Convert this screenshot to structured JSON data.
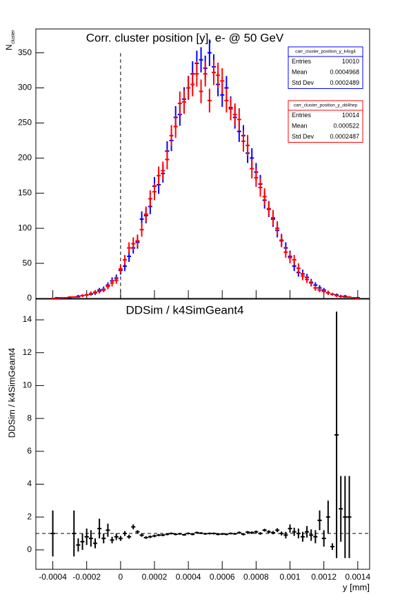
{
  "chart_data": [
    {
      "type": "hist_errorbar",
      "title": "Corr. cluster position [y],  e- @ 50 GeV",
      "ylabel": "N",
      "ylabel_sub": "cluster",
      "xlim": [
        -0.0005,
        0.00147
      ],
      "ylim": [
        0,
        384
      ],
      "xticks": [
        -0.0004,
        -0.0002,
        0,
        0.0002,
        0.0004,
        0.0006,
        0.0008,
        0.001,
        0.0012,
        0.0014
      ],
      "yticks": [
        0,
        50,
        100,
        150,
        200,
        250,
        300,
        350
      ],
      "vline": {
        "x": 0,
        "y_to": 350
      },
      "x": [
        -0.0004,
        -0.000375,
        -0.00035,
        -0.000325,
        -0.0003,
        -0.000275,
        -0.00025,
        -0.000225,
        -0.0002,
        -0.000175,
        -0.00015,
        -0.000125,
        -0.0001,
        -7.5e-05,
        -5e-05,
        -2.5e-05,
        0,
        2.5e-05,
        5e-05,
        7.5e-05,
        0.0001,
        0.000125,
        0.00015,
        0.000175,
        0.0002,
        0.000225,
        0.00025,
        0.000275,
        0.0003,
        0.000325,
        0.00035,
        0.000375,
        0.0004,
        0.000425,
        0.00045,
        0.000475,
        0.0005,
        0.000525,
        0.00055,
        0.000575,
        0.0006,
        0.000625,
        0.00065,
        0.000675,
        0.0007,
        0.000725,
        0.00075,
        0.000775,
        0.0008,
        0.000825,
        0.00085,
        0.000875,
        0.0009,
        0.000925,
        0.00095,
        0.000975,
        0.001,
        0.001025,
        0.00105,
        0.001075,
        0.0011,
        0.001125,
        0.00115,
        0.001175,
        0.0012,
        0.001225,
        0.00125,
        0.001275,
        0.0013,
        0.001325,
        0.00135,
        0.001375,
        0.0014
      ],
      "series": [
        {
          "name": "carr_cluster_position_y_k4sg4",
          "color": "#0000ff",
          "values": [
            0,
            1,
            0,
            1,
            1,
            2,
            3,
            4,
            5,
            6,
            8,
            12,
            13,
            19,
            25,
            29,
            40,
            46,
            60,
            72,
            80,
            113,
            118,
            131,
            160,
            162,
            178,
            210,
            225,
            258,
            262,
            284,
            300,
            320,
            335,
            340,
            328,
            350,
            330,
            305,
            290,
            300,
            272,
            258,
            238,
            232,
            207,
            200,
            180,
            163,
            140,
            127,
            113,
            97,
            83,
            72,
            60,
            46,
            37,
            35,
            30,
            23,
            19,
            15,
            12,
            8,
            6,
            5,
            3,
            3,
            2,
            1,
            1
          ],
          "errors": [
            0,
            1,
            0,
            1,
            1,
            1,
            2,
            2,
            2,
            2,
            3,
            3,
            4,
            4,
            5,
            5,
            6,
            7,
            8,
            8,
            9,
            11,
            11,
            11,
            13,
            13,
            13,
            14,
            15,
            16,
            16,
            17,
            17,
            18,
            18,
            18,
            18,
            19,
            18,
            17,
            17,
            17,
            16,
            16,
            15,
            15,
            14,
            14,
            13,
            13,
            12,
            11,
            11,
            10,
            9,
            8,
            8,
            7,
            6,
            6,
            5,
            5,
            4,
            4,
            3,
            3,
            2,
            2,
            2,
            2,
            1,
            1,
            1
          ]
        },
        {
          "name": "carr_cluster_position_y_dd4hep",
          "color": "#ff0000",
          "values": [
            0,
            0,
            1,
            1,
            2,
            2,
            2,
            4,
            5,
            7,
            9,
            10,
            12,
            17,
            22,
            26,
            42,
            55,
            72,
            78,
            82,
            98,
            120,
            142,
            152,
            175,
            182,
            198,
            232,
            245,
            278,
            280,
            300,
            305,
            320,
            295,
            320,
            282,
            322,
            318,
            310,
            282,
            270,
            262,
            255,
            224,
            218,
            185,
            172,
            158,
            145,
            128,
            115,
            100,
            82,
            66,
            58,
            55,
            43,
            32,
            27,
            22,
            15,
            12,
            10,
            8,
            6,
            4,
            3,
            2,
            2,
            1,
            0
          ],
          "errors": [
            0,
            0,
            1,
            1,
            1,
            1,
            1,
            2,
            2,
            3,
            3,
            3,
            3,
            4,
            5,
            5,
            6,
            7,
            8,
            9,
            9,
            10,
            11,
            12,
            12,
            13,
            13,
            14,
            15,
            16,
            17,
            17,
            17,
            17,
            18,
            17,
            18,
            17,
            18,
            18,
            18,
            17,
            16,
            16,
            16,
            15,
            15,
            14,
            13,
            13,
            12,
            11,
            11,
            10,
            9,
            8,
            8,
            7,
            7,
            6,
            5,
            5,
            4,
            3,
            3,
            3,
            2,
            2,
            2,
            1,
            1,
            1,
            0
          ]
        }
      ],
      "stats": [
        {
          "title": "carr_cluster_position_y_k4sg4",
          "color": "#0000ff",
          "rows": [
            [
              "Entries",
              10010
            ],
            [
              "Mean",
              0.0004968
            ],
            [
              "Std Dev",
              0.0002489
            ]
          ]
        },
        {
          "title": "carr_cluster_position_y_dd4hep",
          "color": "#ff0000",
          "rows": [
            [
              "Entries",
              10014
            ],
            [
              "Mean",
              0.000522
            ],
            [
              "Std Dev",
              0.0002487
            ]
          ]
        }
      ]
    },
    {
      "type": "errorbar",
      "title": "DDSim / k4SimGeant4",
      "ylabel": "DDSim / k4SimGeant4",
      "xlabel": "y [mm]",
      "xlim": [
        -0.0005,
        0.00147
      ],
      "ylim": [
        -1.18,
        15.26
      ],
      "xticks": [
        -0.0004,
        -0.0002,
        0,
        0.0002,
        0.0004,
        0.0006,
        0.0008,
        0.001,
        0.0012,
        0.0014
      ],
      "yticks": [
        0,
        2,
        4,
        6,
        8,
        10,
        12,
        14
      ],
      "hline": 1,
      "x": [
        -0.0004,
        -0.000375,
        -0.00035,
        -0.000325,
        -0.0003,
        -0.000275,
        -0.00025,
        -0.000225,
        -0.0002,
        -0.000175,
        -0.00015,
        -0.000125,
        -0.0001,
        -7.5e-05,
        -5e-05,
        -2.5e-05,
        0,
        2.5e-05,
        5e-05,
        7.5e-05,
        0.0001,
        0.000125,
        0.00015,
        0.000175,
        0.0002,
        0.000225,
        0.00025,
        0.000275,
        0.0003,
        0.000325,
        0.00035,
        0.000375,
        0.0004,
        0.000425,
        0.00045,
        0.000475,
        0.0005,
        0.000525,
        0.00055,
        0.000575,
        0.0006,
        0.000625,
        0.00065,
        0.000675,
        0.0007,
        0.000725,
        0.00075,
        0.000775,
        0.0008,
        0.000825,
        0.00085,
        0.000875,
        0.0009,
        0.000925,
        0.00095,
        0.000975,
        0.001,
        0.001025,
        0.00105,
        0.001075,
        0.0011,
        0.001125,
        0.00115,
        0.001175,
        0.0012,
        0.001225,
        0.00125,
        0.001275,
        0.0013,
        0.001325,
        0.00135,
        0.001375,
        0.0014
      ],
      "series": [
        {
          "color": "#000000",
          "values": [
            1.0,
            null,
            null,
            null,
            null,
            1.0,
            0.3,
            0.5,
            0.8,
            0.7,
            0.4,
            1.3,
            0.7,
            1.2,
            0.6,
            0.8,
            0.7,
            1.0,
            0.8,
            1.4,
            1.1,
            0.9,
            0.75,
            0.8,
            0.85,
            0.9,
            0.9,
            0.95,
            1.0,
            0.95,
            0.98,
            0.92,
            1.0,
            0.95,
            1.05,
            1.02,
            0.98,
            1.0,
            1.0,
            0.95,
            0.97,
            0.95,
            1.0,
            0.98,
            1.05,
            0.95,
            1.08,
            1.05,
            1.1,
            1.0,
            1.2,
            1.1,
            1.05,
            1.2,
            1.0,
            0.9,
            1.3,
            1.1,
            1.0,
            0.8,
            1.1,
            0.9,
            0.8,
            1.8,
            0.7,
            2.0,
            0.2,
            7.0,
            2.5,
            2.0,
            2.0,
            null,
            null
          ],
          "errors": [
            1.4,
            null,
            null,
            null,
            null,
            1.4,
            0.4,
            0.5,
            0.5,
            0.5,
            0.3,
            0.6,
            0.3,
            0.4,
            0.2,
            0.2,
            0.15,
            0.15,
            0.12,
            0.15,
            0.1,
            0.1,
            0.08,
            0.08,
            0.08,
            0.07,
            0.07,
            0.06,
            0.06,
            0.06,
            0.06,
            0.06,
            0.06,
            0.06,
            0.06,
            0.06,
            0.06,
            0.06,
            0.06,
            0.06,
            0.06,
            0.06,
            0.06,
            0.06,
            0.07,
            0.07,
            0.07,
            0.08,
            0.08,
            0.08,
            0.09,
            0.1,
            0.1,
            0.12,
            0.12,
            0.2,
            0.25,
            0.25,
            0.3,
            0.3,
            0.35,
            0.35,
            0.4,
            0.6,
            0.5,
            1.0,
            0.2,
            7.5,
            2.0,
            2.5,
            2.5,
            null,
            null
          ]
        }
      ]
    }
  ]
}
